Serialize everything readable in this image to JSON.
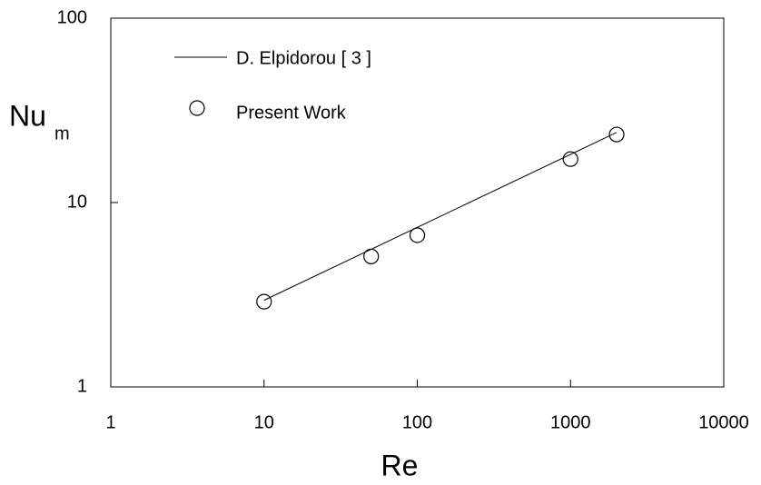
{
  "chart_data": {
    "type": "scatter",
    "x_label": "Re",
    "y_label": {
      "main": "Nu",
      "sub": "m"
    },
    "xscale": "log",
    "yscale": "log",
    "xlim": [
      1,
      10000
    ],
    "xticks": [
      1,
      10,
      100,
      1000,
      10000
    ],
    "ylim": [
      1,
      100
    ],
    "yticks": [
      1,
      10,
      100
    ],
    "grid": false,
    "legend": "upper left",
    "series": [
      {
        "name": "D. Elpidorou [ 3 ]",
        "mode": "line",
        "color": "#000000",
        "x": [
          10,
          2000
        ],
        "values": [
          2.95,
          24
        ]
      },
      {
        "name": "Present Work",
        "mode": "markers",
        "color": "#000000",
        "x": [
          10,
          50,
          100,
          1000,
          2000
        ],
        "values": [
          2.9,
          5.1,
          6.65,
          17.2,
          23.4
        ]
      }
    ]
  }
}
